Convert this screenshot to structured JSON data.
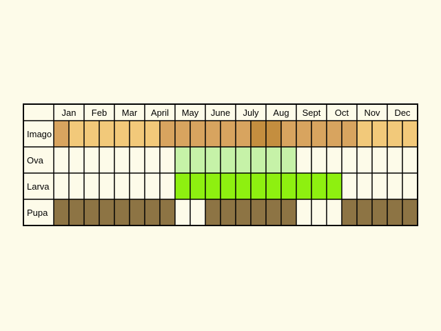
{
  "chart_data": {
    "type": "table",
    "title": "",
    "months": [
      "Jan",
      "Feb",
      "Mar",
      "April",
      "May",
      "June",
      "July",
      "Aug",
      "Sept",
      "Oct",
      "Nov",
      "Dec"
    ],
    "periods_per_month": 2,
    "rows": [
      {
        "label": "Imago",
        "cells": [
          "orange",
          "light-orange",
          "light-orange",
          "light-orange",
          "light-orange",
          "light-orange",
          "light-orange",
          "orange",
          "orange",
          "orange",
          "orange",
          "orange",
          "orange",
          "dark-orange",
          "dark-orange",
          "orange",
          "orange",
          "orange",
          "orange",
          "orange",
          "light-orange",
          "light-orange",
          "light-orange",
          "light-orange"
        ]
      },
      {
        "label": "Ova",
        "cells": [
          "empty",
          "empty",
          "empty",
          "empty",
          "empty",
          "empty",
          "empty",
          "empty",
          "light-green",
          "light-green",
          "light-green",
          "light-green",
          "light-green",
          "light-green",
          "light-green",
          "light-green",
          "empty",
          "empty",
          "empty",
          "empty",
          "empty",
          "empty",
          "empty",
          "empty"
        ]
      },
      {
        "label": "Larva",
        "cells": [
          "empty",
          "empty",
          "empty",
          "empty",
          "empty",
          "empty",
          "empty",
          "empty",
          "bright-green",
          "bright-green",
          "bright-green",
          "bright-green",
          "bright-green",
          "bright-green",
          "bright-green",
          "bright-green",
          "bright-green",
          "bright-green",
          "bright-green",
          "empty",
          "empty",
          "empty",
          "empty",
          "empty"
        ]
      },
      {
        "label": "Pupa",
        "cells": [
          "brown",
          "brown",
          "brown",
          "brown",
          "brown",
          "brown",
          "brown",
          "brown",
          "empty",
          "empty",
          "brown",
          "brown",
          "brown",
          "brown",
          "brown",
          "brown",
          "empty",
          "empty",
          "empty",
          "brown",
          "brown",
          "brown",
          "brown",
          "brown"
        ]
      }
    ],
    "colors": {
      "empty": "#fdfbe9",
      "light-orange": "#f2c97a",
      "orange": "#d8a45f",
      "dark-orange": "#c48e3f",
      "light-green": "#c6f2a8",
      "bright-green": "#8ef010",
      "brown": "#8d7444",
      "grid": "#000000"
    }
  }
}
